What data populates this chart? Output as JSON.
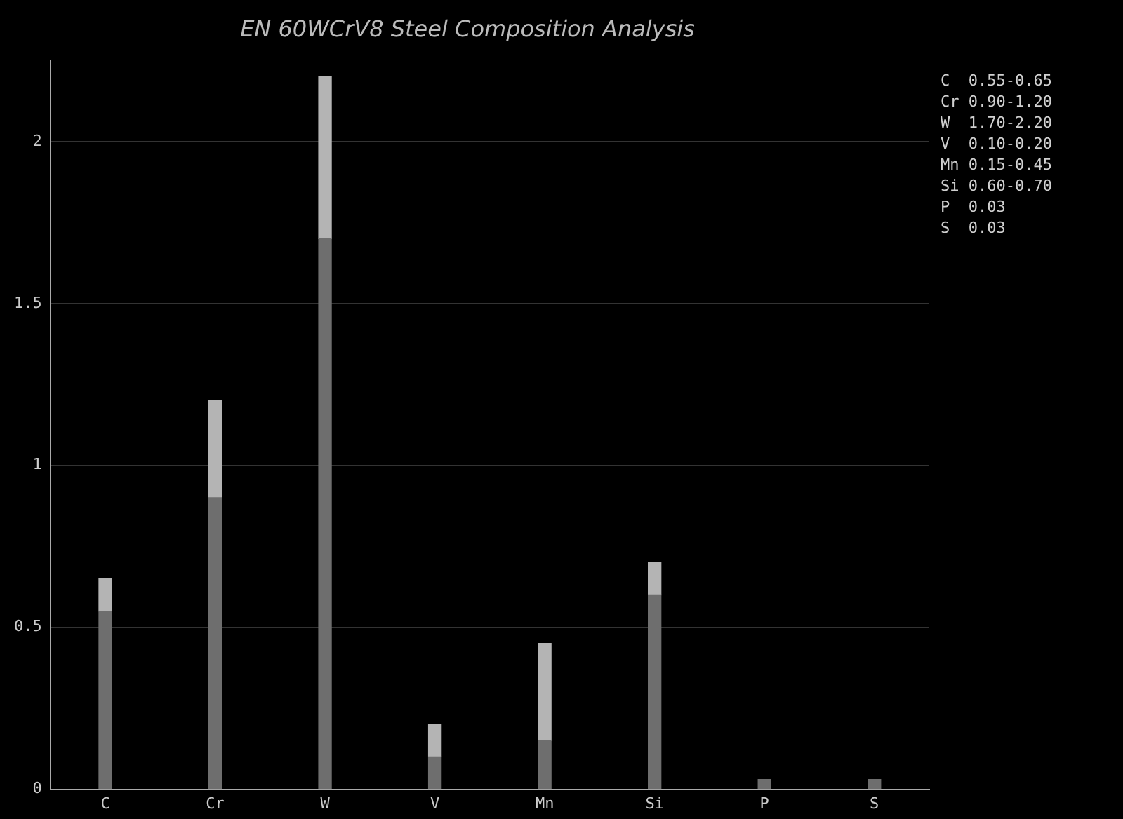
{
  "chart_data": {
    "type": "bar",
    "title": "EN 60WCrV8 Steel Composition Analysis",
    "categories": [
      "C",
      "Cr",
      "W",
      "V",
      "Mn",
      "Si",
      "P",
      "S"
    ],
    "stacked": true,
    "series": [
      {
        "color": "#6e6e6e",
        "values": [
          0.55,
          0.9,
          1.7,
          0.1,
          0.15,
          0.6,
          0.03,
          0.03
        ]
      },
      {
        "color": "#b4b4b4",
        "values": [
          0.1,
          0.3,
          0.5,
          0.1,
          0.3,
          0.1,
          null,
          null
        ]
      }
    ],
    "ylim": [
      0,
      2.25
    ],
    "yticks": [
      0,
      0.5,
      1,
      1.5,
      2
    ],
    "grid": "y",
    "legend": false,
    "annotations": [
      "C  0.55-0.65",
      "Cr 0.90-1.20",
      "W  1.70-2.20",
      "V  0.10-0.20",
      "Mn 0.15-0.45",
      "Si 0.60-0.70",
      "P  0.03",
      "S  0.03"
    ]
  }
}
